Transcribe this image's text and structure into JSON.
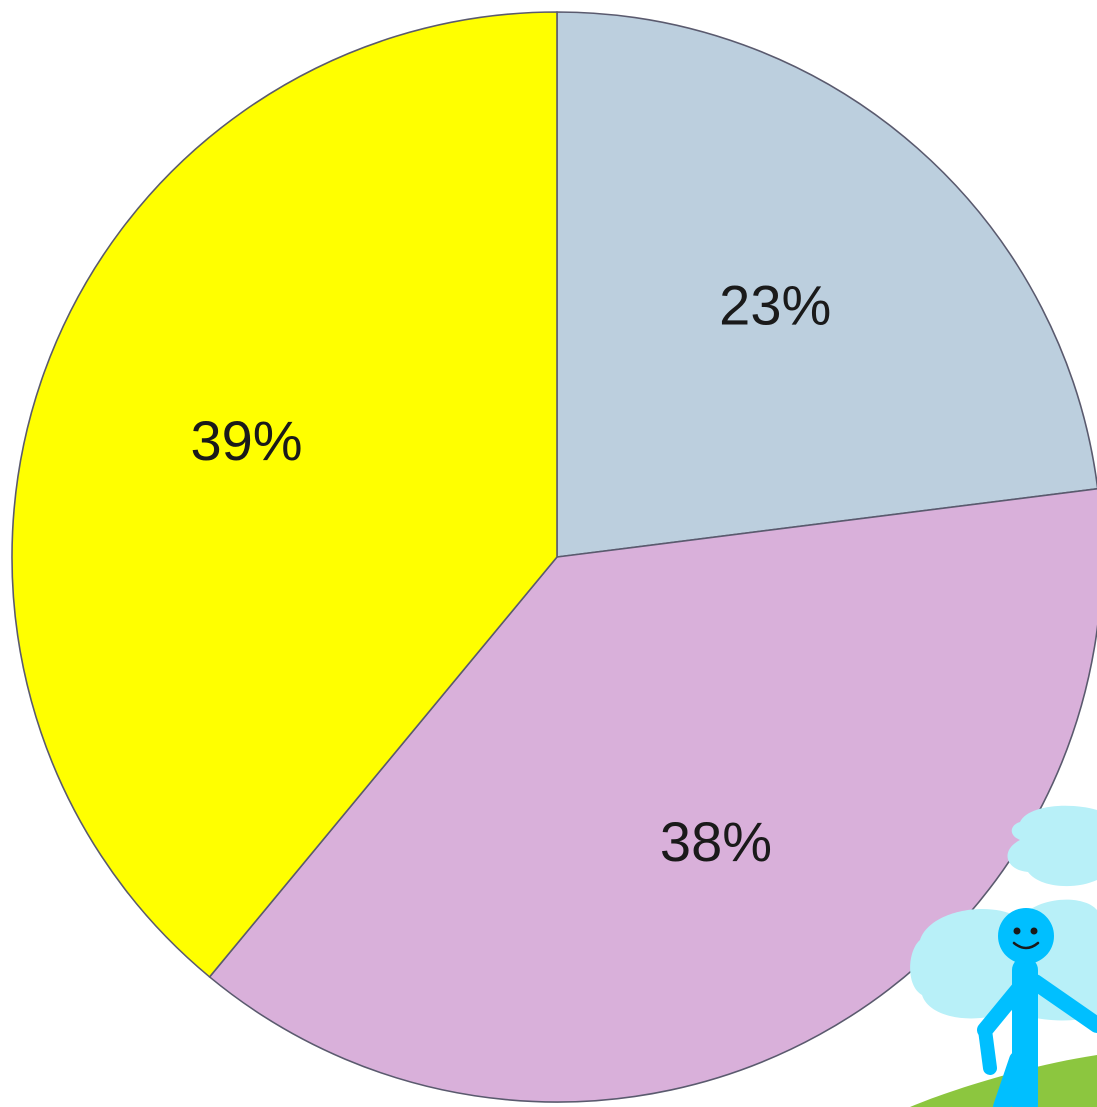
{
  "chart_data": {
    "type": "pie",
    "title": "",
    "start_angle_deg": 0,
    "direction": "clockwise",
    "slices": [
      {
        "label": "23%",
        "value": 23,
        "color": "#bccfde"
      },
      {
        "label": "38%",
        "value": 38,
        "color": "#d9b0da"
      },
      {
        "label": "39%",
        "value": 39,
        "color": "#ffff00"
      }
    ],
    "legend": "none",
    "edge_color": "#5a5a6e"
  },
  "decoration": {
    "mascot": {
      "icon": "stick-figure-mascot-icon",
      "body_color": "#00bfff",
      "cloud_color": "#b8f0f8",
      "grass_color": "#8cc63f"
    }
  }
}
